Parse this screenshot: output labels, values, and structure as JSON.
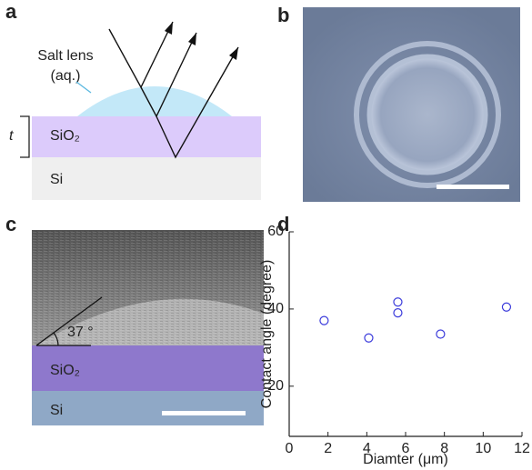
{
  "panel_a": {
    "label": "a",
    "lens_label_line1": "Salt lens",
    "lens_label_line2": "(aq.)",
    "thickness": "t",
    "layer_top": "SiO₂",
    "layer_bottom": "Si"
  },
  "panel_b": {
    "label": "b"
  },
  "panel_c": {
    "label": "c",
    "angle": "37 °",
    "layer_top": "SiO₂",
    "layer_bottom": "Si"
  },
  "chart_data": {
    "label": "d",
    "type": "scatter",
    "x_label": "Diamter (μm)",
    "y_label": "Contact angle (degree)",
    "x": [
      1.8,
      4.1,
      5.6,
      5.6,
      7.8,
      11.2
    ],
    "values": [
      37,
      32.5,
      41.8,
      39,
      33.5,
      40.5
    ],
    "color": "#3b3bdb",
    "xlim": [
      0,
      12
    ],
    "xticks": [
      0,
      2,
      4,
      6,
      8,
      10,
      12
    ],
    "ylim": [
      7,
      60
    ],
    "yticks": [
      20,
      40,
      60
    ]
  }
}
